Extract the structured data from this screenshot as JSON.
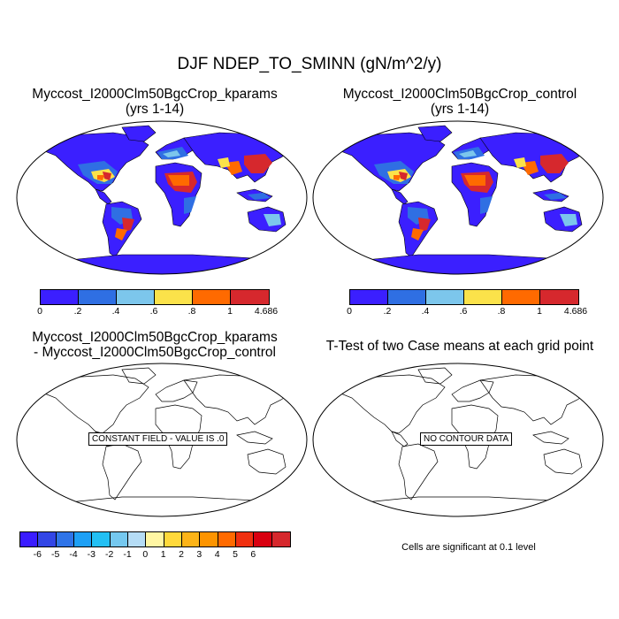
{
  "figure": {
    "title": "DJF NDEP_TO_SMINN (gN/m^2/y)"
  },
  "panels": [
    {
      "title_line1": "Myccost_I2000Clm50BgcCrop_kparams",
      "title_line2": "(yrs 1-14)"
    },
    {
      "title_line1": "Myccost_I2000Clm50BgcCrop_control",
      "title_line2": "(yrs 1-14)"
    },
    {
      "title_line1": "Myccost_I2000Clm50BgcCrop_kparams",
      "title_line2": "- Myccost_I2000Clm50BgcCrop_control",
      "message": "CONSTANT FIELD - VALUE IS .0"
    },
    {
      "title_line1": "T-Test of two Case means at each grid point",
      "message": "NO CONTOUR DATA",
      "note": "Cells are significant at 0.1 level"
    }
  ],
  "colorbar_main": {
    "colors": [
      "#3b1fff",
      "#2f6fe3",
      "#7cc6ec",
      "#fbe24a",
      "#ff6a00",
      "#d6282d"
    ],
    "labels": [
      "0",
      ".2",
      ".4",
      ".6",
      ".8",
      "1",
      "4.686"
    ]
  },
  "colorbar_diff": {
    "colors": [
      "#3a1cff",
      "#3346e6",
      "#2f74e8",
      "#1ea0f5",
      "#23c0f4",
      "#75c8ef",
      "#b5dcf5",
      "#fff6a3",
      "#ffd93b",
      "#fdb418",
      "#fd9400",
      "#ff6a00",
      "#f03010",
      "#d90010",
      "#d6282d"
    ],
    "labels": [
      "-6",
      "-5",
      "-4",
      "-3",
      "-2",
      "-1",
      "0",
      "1",
      "2",
      "3",
      "4",
      "5",
      "6"
    ]
  },
  "map_colors": {
    "ocean": "#ffffff",
    "low": "#3b1fff",
    "mid": "#2f6fe3",
    "light": "#7cc6ec",
    "yellow": "#fbe24a",
    "orange": "#ff6a00",
    "red": "#d6282d"
  }
}
